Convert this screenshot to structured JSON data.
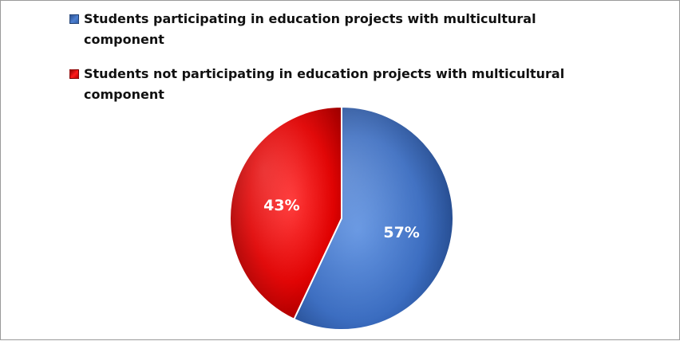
{
  "chart_data": {
    "type": "pie",
    "title": "",
    "categories": [
      "Students participating in education projects with multicultural component",
      "Students not participating in education projects with multicultural component"
    ],
    "values": [
      57,
      43
    ],
    "value_labels": [
      "57%",
      "43%"
    ],
    "colors": [
      "#3566b8",
      "#d40000"
    ],
    "legend_position": "top",
    "start_angle_deg": 0,
    "direction": "clockwise"
  },
  "legend": {
    "items": [
      {
        "label": "Students participating in education projects with multicultural component",
        "color": "#3566b8"
      },
      {
        "label": "Students not participating in education projects with multicultural component",
        "color": "#d40000"
      }
    ]
  }
}
